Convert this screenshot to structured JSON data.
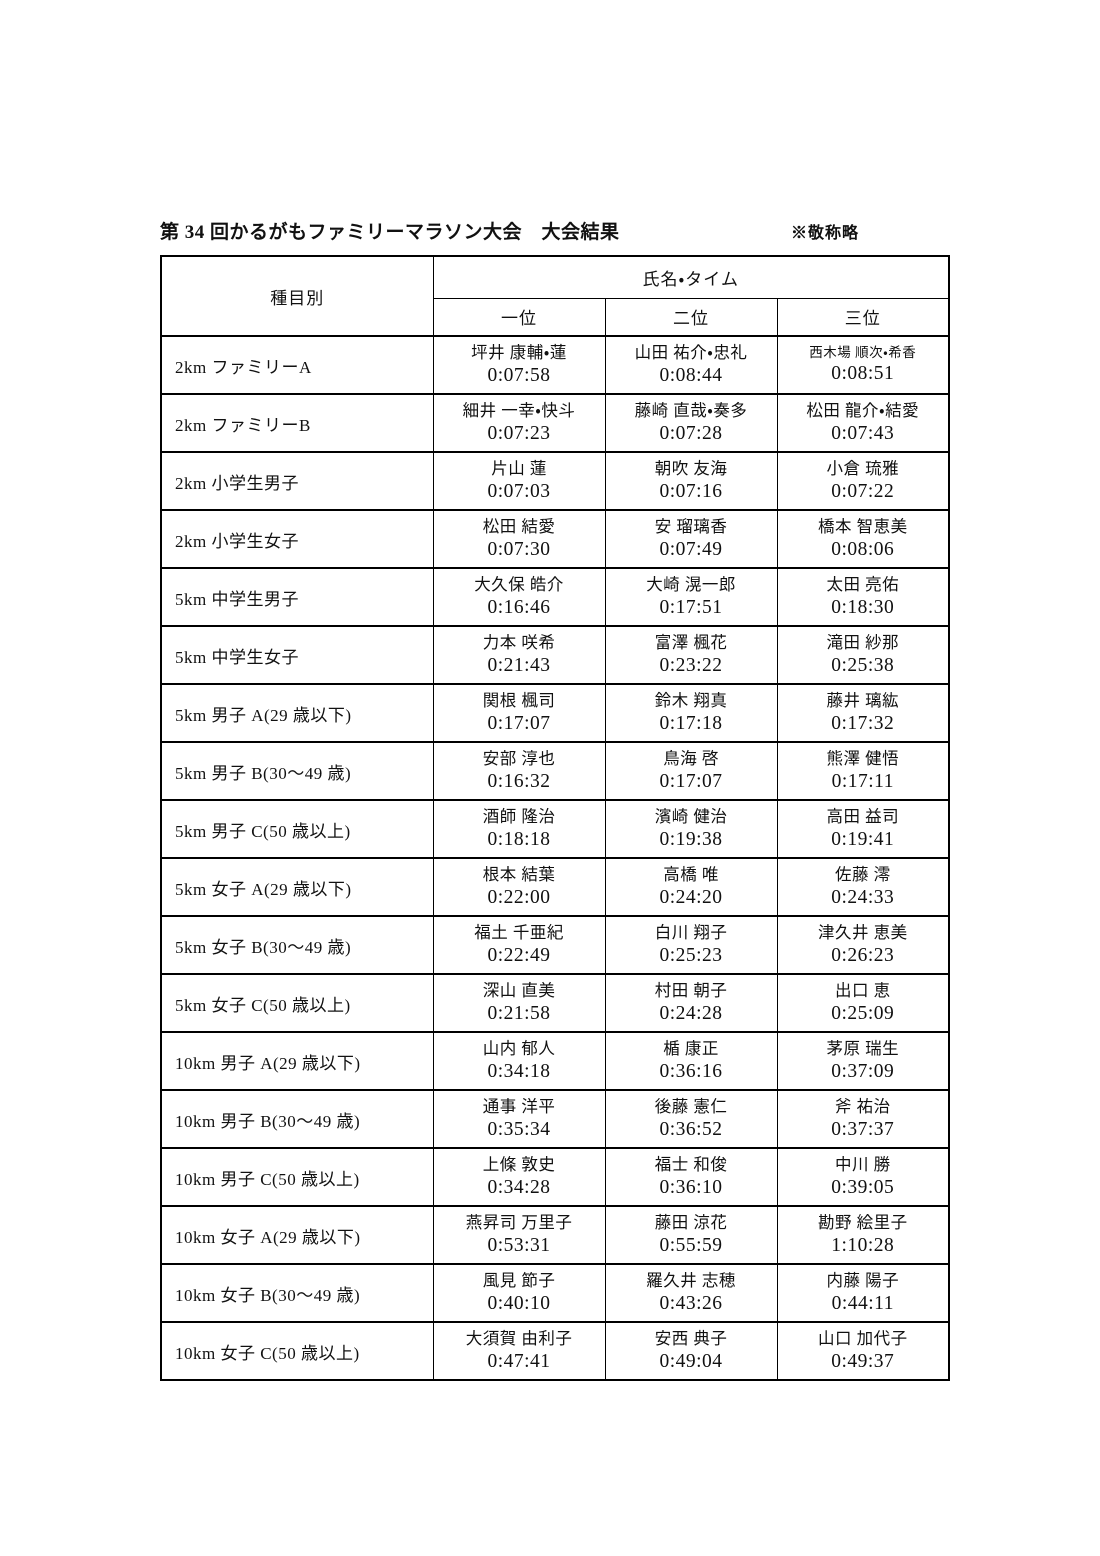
{
  "title": "第 34 回かるがもファミリーマラソン大会　大会結果",
  "note": "※敬称略",
  "table": {
    "category_header": "種目別",
    "group_header": "氏名・タイム",
    "rank_headers": [
      "一位",
      "二位",
      "三位"
    ],
    "rows": [
      {
        "category": "2km ファミリーA",
        "results": [
          {
            "name": "坪井 康輔・蓮",
            "time": "0:07:58"
          },
          {
            "name": "山田 祐介・忠礼",
            "time": "0:08:44"
          },
          {
            "name": "西木場 順次・希香",
            "time": "0:08:51"
          }
        ]
      },
      {
        "category": "2km ファミリーB",
        "results": [
          {
            "name": "細井 一幸・快斗",
            "time": "0:07:23"
          },
          {
            "name": "藤崎 直哉・奏多",
            "time": "0:07:28"
          },
          {
            "name": "松田 龍介・結愛",
            "time": "0:07:43"
          }
        ]
      },
      {
        "category": "2km 小学生男子",
        "results": [
          {
            "name": "片山 蓮",
            "time": "0:07:03"
          },
          {
            "name": "朝吹 友海",
            "time": "0:07:16"
          },
          {
            "name": "小倉 琉雅",
            "time": "0:07:22"
          }
        ]
      },
      {
        "category": "2km 小学生女子",
        "results": [
          {
            "name": "松田 結愛",
            "time": "0:07:30"
          },
          {
            "name": "安 瑠璃香",
            "time": "0:07:49"
          },
          {
            "name": "橋本 智恵美",
            "time": "0:08:06"
          }
        ]
      },
      {
        "category": "5km 中学生男子",
        "results": [
          {
            "name": "大久保 皓介",
            "time": "0:16:46"
          },
          {
            "name": "大崎 滉一郎",
            "time": "0:17:51"
          },
          {
            "name": "太田 亮佑",
            "time": "0:18:30"
          }
        ]
      },
      {
        "category": "5km 中学生女子",
        "results": [
          {
            "name": "力本 咲希",
            "time": "0:21:43"
          },
          {
            "name": "富澤 楓花",
            "time": "0:23:22"
          },
          {
            "name": "滝田 紗那",
            "time": "0:25:38"
          }
        ]
      },
      {
        "category": "5km 男子 A(29 歳以下)",
        "results": [
          {
            "name": "関根 楓司",
            "time": "0:17:07"
          },
          {
            "name": "鈴木 翔真",
            "time": "0:17:18"
          },
          {
            "name": "藤井 璃紘",
            "time": "0:17:32"
          }
        ]
      },
      {
        "category": "5km 男子 B(30〜49 歳)",
        "results": [
          {
            "name": "安部 淳也",
            "time": "0:16:32"
          },
          {
            "name": "鳥海 啓",
            "time": "0:17:07"
          },
          {
            "name": "熊澤 健悟",
            "time": "0:17:11"
          }
        ]
      },
      {
        "category": "5km 男子 C(50 歳以上)",
        "results": [
          {
            "name": "酒師 隆治",
            "time": "0:18:18"
          },
          {
            "name": "濱崎 健治",
            "time": "0:19:38"
          },
          {
            "name": "高田 益司",
            "time": "0:19:41"
          }
        ]
      },
      {
        "category": "5km 女子 A(29 歳以下)",
        "results": [
          {
            "name": "根本 結葉",
            "time": "0:22:00"
          },
          {
            "name": "高橋 唯",
            "time": "0:24:20"
          },
          {
            "name": "佐藤 澪",
            "time": "0:24:33"
          }
        ]
      },
      {
        "category": "5km 女子 B(30〜49 歳)",
        "results": [
          {
            "name": "福土 千亜紀",
            "time": "0:22:49"
          },
          {
            "name": "白川 翔子",
            "time": "0:25:23"
          },
          {
            "name": "津久井 恵美",
            "time": "0:26:23"
          }
        ]
      },
      {
        "category": "5km 女子 C(50 歳以上)",
        "results": [
          {
            "name": "深山 直美",
            "time": "0:21:58"
          },
          {
            "name": "村田 朝子",
            "time": "0:24:28"
          },
          {
            "name": "出口 恵",
            "time": "0:25:09"
          }
        ]
      },
      {
        "category": "10km 男子 A(29 歳以下)",
        "results": [
          {
            "name": "山内 郁人",
            "time": "0:34:18"
          },
          {
            "name": "楯 康正",
            "time": "0:36:16"
          },
          {
            "name": "茅原 瑞生",
            "time": "0:37:09"
          }
        ]
      },
      {
        "category": "10km 男子 B(30〜49 歳)",
        "results": [
          {
            "name": "通事 洋平",
            "time": "0:35:34"
          },
          {
            "name": "後藤 憲仁",
            "time": "0:36:52"
          },
          {
            "name": "斧 祐治",
            "time": "0:37:37"
          }
        ]
      },
      {
        "category": "10km 男子 C(50 歳以上)",
        "results": [
          {
            "name": "上條 敦史",
            "time": "0:34:28"
          },
          {
            "name": "福士 和俊",
            "time": "0:36:10"
          },
          {
            "name": "中川 勝",
            "time": "0:39:05"
          }
        ]
      },
      {
        "category": "10km 女子 A(29 歳以下)",
        "results": [
          {
            "name": "燕昇司 万里子",
            "time": "0:53:31"
          },
          {
            "name": "藤田 涼花",
            "time": "0:55:59"
          },
          {
            "name": "勘野 絵里子",
            "time": "1:10:28"
          }
        ]
      },
      {
        "category": "10km 女子 B(30〜49 歳)",
        "results": [
          {
            "name": "風見 節子",
            "time": "0:40:10"
          },
          {
            "name": "羅久井 志穂",
            "time": "0:43:26"
          },
          {
            "name": "内藤 陽子",
            "time": "0:44:11"
          }
        ]
      },
      {
        "category": "10km 女子 C(50 歳以上)",
        "results": [
          {
            "name": "大須賀 由利子",
            "time": "0:47:41"
          },
          {
            "name": "安西 典子",
            "time": "0:49:04"
          },
          {
            "name": "山口 加代子",
            "time": "0:49:37"
          }
        ]
      }
    ]
  }
}
